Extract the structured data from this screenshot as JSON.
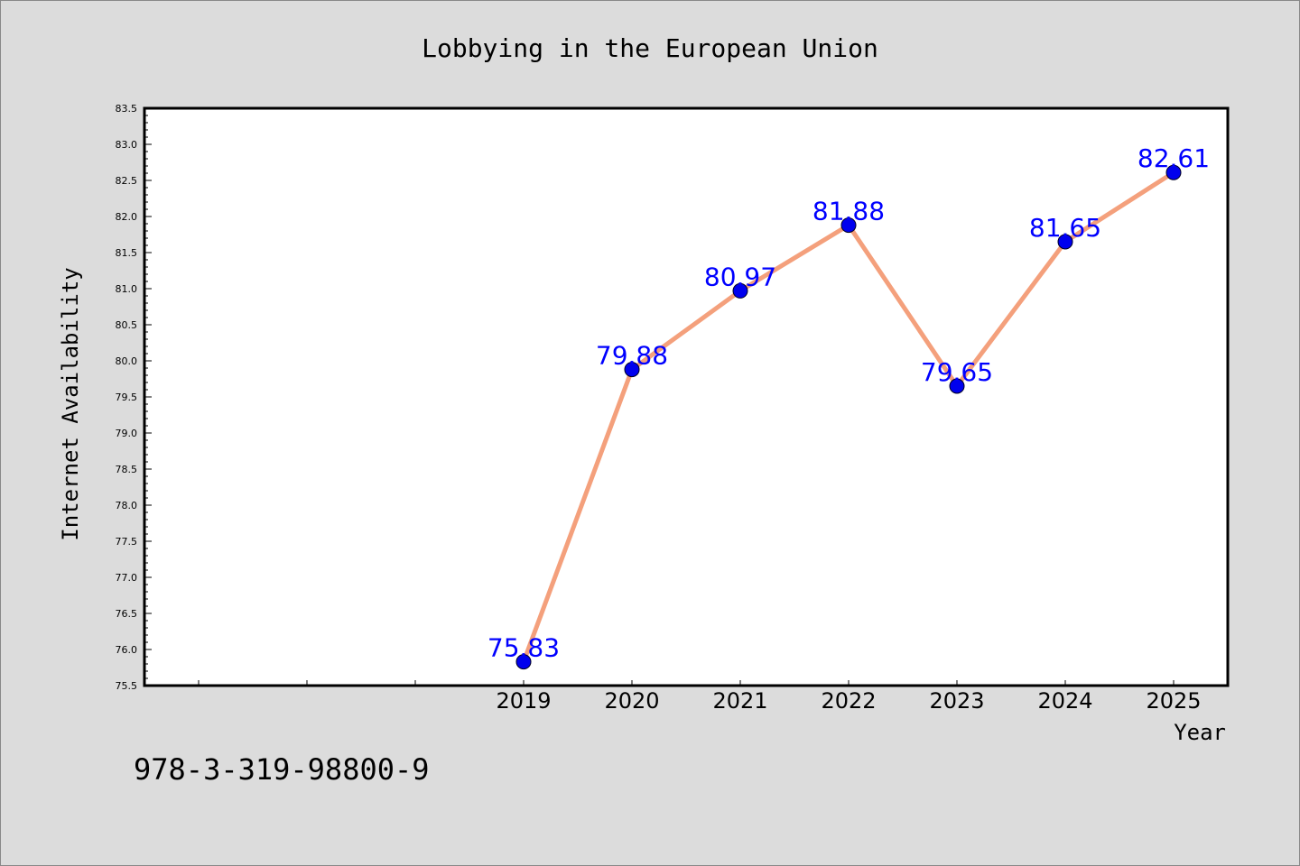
{
  "chart_data": {
    "type": "line",
    "title": "Lobbying in the European Union",
    "xlabel": "Year",
    "ylabel": "Internet Availability",
    "x": [
      "2019",
      "2020",
      "2021",
      "2022",
      "2023",
      "2024",
      "2025"
    ],
    "series": [
      {
        "values": [
          75.83,
          79.88,
          80.97,
          81.88,
          79.65,
          81.65,
          82.61
        ],
        "labels": [
          "75.83",
          "79.88",
          "80.97",
          "81.88",
          "79.65",
          "81.65",
          "82.61"
        ]
      }
    ],
    "ylim": [
      75.5,
      83.5
    ],
    "y_ticks": [
      "75.5",
      "76.0",
      "76.5",
      "77.0",
      "77.5",
      "78.0",
      "78.5",
      "79.0",
      "79.5",
      "80.0",
      "80.5",
      "81.0",
      "81.5",
      "82.0",
      "82.5",
      "83.0",
      "83.5"
    ],
    "grid": false,
    "colors": {
      "line": "#f4a07c",
      "marker": "#0000ee",
      "label": "#0000ff",
      "background": "#dcdcdc",
      "plot_background": "#ffffff"
    }
  },
  "footer_text": "978-3-319-98800-9"
}
